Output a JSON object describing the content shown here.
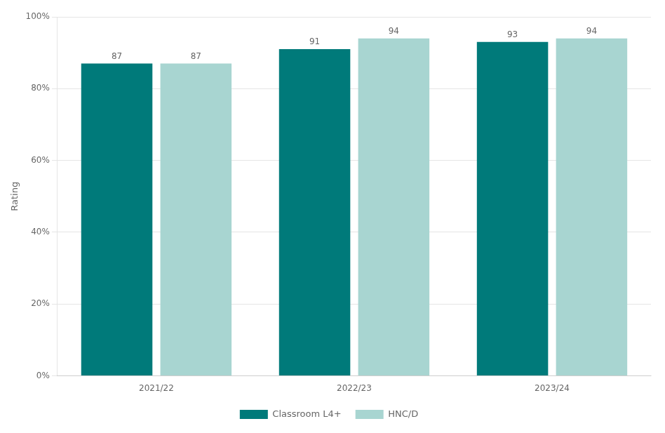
{
  "chart_data": {
    "type": "bar",
    "categories": [
      "2021/22",
      "2022/23",
      "2023/24"
    ],
    "series": [
      {
        "name": "Classroom L4+",
        "color": "#007a7a",
        "values": [
          87,
          91,
          93
        ]
      },
      {
        "name": "HNC/D",
        "color": "#a8d5d1",
        "values": [
          87,
          94,
          94
        ]
      }
    ],
    "ylabel": "Rating",
    "ylim": [
      0,
      100
    ],
    "yticks": [
      {
        "value": 0,
        "label": "0%"
      },
      {
        "value": 20,
        "label": "20%"
      },
      {
        "value": 40,
        "label": "40%"
      },
      {
        "value": 60,
        "label": "60%"
      },
      {
        "value": 80,
        "label": "80%"
      },
      {
        "value": 100,
        "label": "100%"
      }
    ],
    "grid": true,
    "legend": "bottom",
    "data_labels": true
  }
}
